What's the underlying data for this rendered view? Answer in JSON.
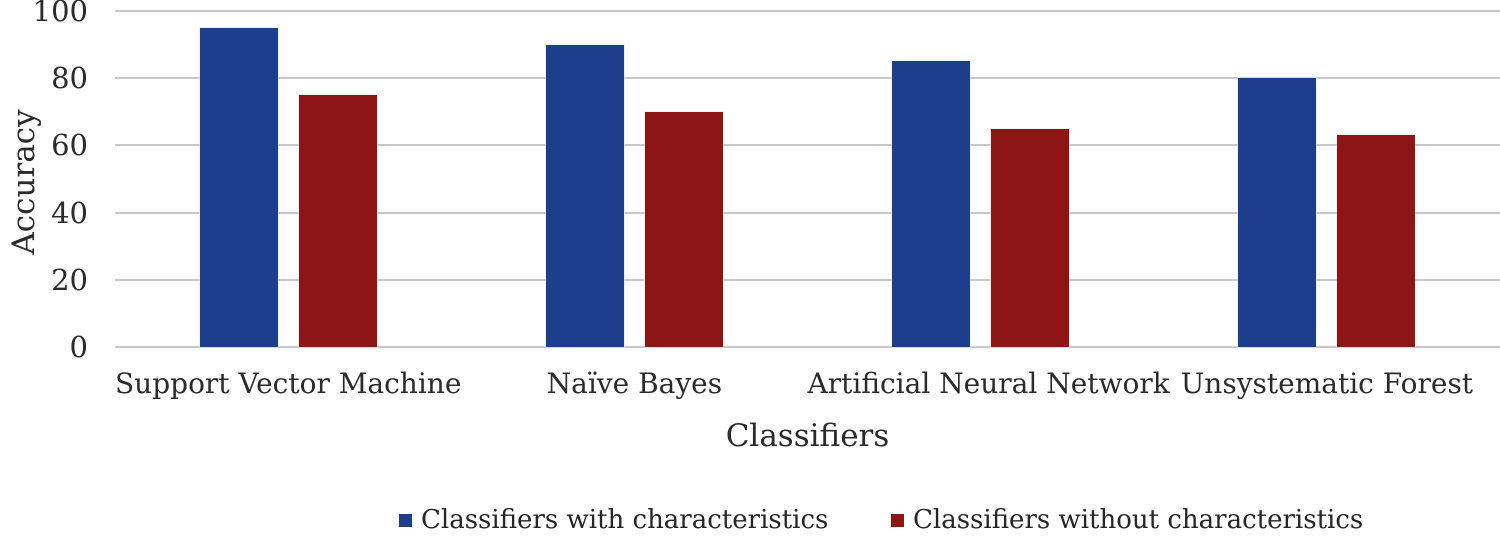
{
  "chart_data": {
    "type": "bar",
    "title": "",
    "xlabel": "Classifiers",
    "ylabel": "Accuracy",
    "categories": [
      "Support Vector Machine",
      "Naïve Bayes",
      "Artificial Neural Network",
      "Unsystematic Forest"
    ],
    "series": [
      {
        "name": "Classifiers with characteristics",
        "color": "#1c3e8c",
        "values": [
          95,
          90,
          85,
          80
        ]
      },
      {
        "name": "Classifiers without characteristics",
        "color": "#8e1515",
        "values": [
          75,
          70,
          65,
          63
        ]
      }
    ],
    "ylim": [
      0,
      100
    ],
    "yticks": [
      0,
      20,
      40,
      60,
      80,
      100
    ],
    "grid": true,
    "legend_position": "bottom",
    "colors": {
      "gridline": "#c8c8c8",
      "axis_text": "#2b2b2b"
    }
  }
}
